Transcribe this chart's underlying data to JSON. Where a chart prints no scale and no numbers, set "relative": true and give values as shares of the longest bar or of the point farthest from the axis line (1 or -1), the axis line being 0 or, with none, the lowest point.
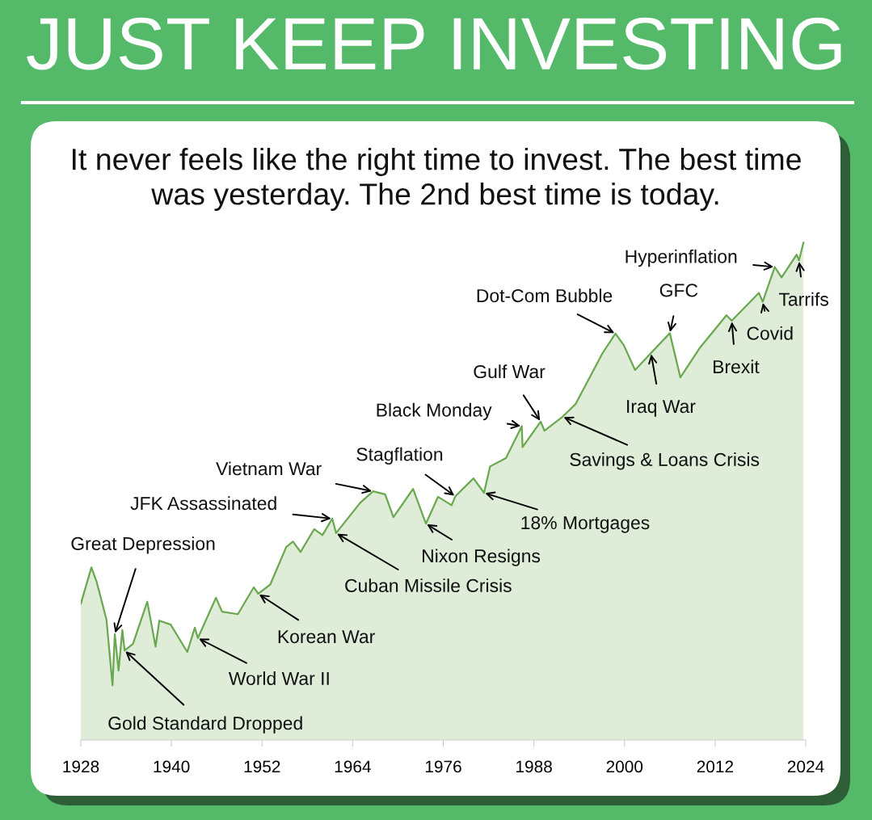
{
  "chart_data": {
    "type": "area",
    "relative": true,
    "title": "JUST KEEP INVESTING",
    "subtitle": "It never feels like the right time to invest. The best time was yesterday. The 2nd best time is today.",
    "xlim": [
      1928,
      2024
    ],
    "xticks": [
      1928,
      1940,
      1952,
      1964,
      1976,
      1988,
      2000,
      2012,
      2024
    ],
    "series": [
      {
        "color": "#6aa84f",
        "x": [
          1928.0,
          1929.4,
          1930.1,
          1931.4,
          1932.2,
          1932.5,
          1933.0,
          1933.5,
          1933.8,
          1934.9,
          1936.8,
          1937.9,
          1938.4,
          1939.9,
          1942.1,
          1943.1,
          1943.5,
          1945.9,
          1946.7,
          1948.8,
          1950.9,
          1951.5,
          1953.1,
          1955.2,
          1956.1,
          1957.1,
          1958.9,
          1960.0,
          1961.3,
          1961.8,
          1965.0,
          1966.7,
          1968.3,
          1969.4,
          1972.0,
          1973.7,
          1975.3,
          1977.1,
          1977.6,
          1980.0,
          1981.4,
          1982.2,
          1984.3,
          1986.4,
          1986.5,
          1988.9,
          1989.4,
          1991.8,
          1993.5,
          1997.1,
          1998.8,
          1999.9,
          2001.4,
          2003.5,
          2006.0,
          2007.4,
          2010.0,
          2013.5,
          2014.2,
          2017.8,
          2018.3,
          2019.9,
          2020.8,
          2022.8,
          2023.1,
          2023.7
        ],
        "values": [
          0.274,
          0.347,
          0.318,
          0.242,
          0.11,
          0.213,
          0.14,
          0.221,
          0.18,
          0.193,
          0.278,
          0.188,
          0.24,
          0.232,
          0.177,
          0.226,
          0.205,
          0.286,
          0.258,
          0.253,
          0.307,
          0.294,
          0.313,
          0.388,
          0.399,
          0.378,
          0.424,
          0.412,
          0.445,
          0.416,
          0.477,
          0.5,
          0.494,
          0.448,
          0.505,
          0.435,
          0.489,
          0.472,
          0.49,
          0.526,
          0.497,
          0.55,
          0.567,
          0.631,
          0.589,
          0.64,
          0.622,
          0.65,
          0.675,
          0.778,
          0.817,
          0.794,
          0.744,
          0.778,
          0.818,
          0.729,
          0.789,
          0.854,
          0.843,
          0.899,
          0.881,
          0.951,
          0.93,
          0.976,
          0.964,
          1.0
        ]
      }
    ],
    "annotations": [
      {
        "text": "Great Depression",
        "x": 1932.5,
        "y": 0.213
      },
      {
        "text": "Gold Standard Dropped",
        "x": 1933.8,
        "y": 0.18
      },
      {
        "text": "World War II",
        "x": 1943.5,
        "y": 0.205
      },
      {
        "text": "Korean War",
        "x": 1951.5,
        "y": 0.294
      },
      {
        "text": "Cuban Missile Crisis",
        "x": 1961.8,
        "y": 0.416
      },
      {
        "text": "JFK Assassinated",
        "x": 1961.3,
        "y": 0.445
      },
      {
        "text": "Vietnam War",
        "x": 1966.7,
        "y": 0.5
      },
      {
        "text": "Stagflation",
        "x": 1977.6,
        "y": 0.49
      },
      {
        "text": "Nixon Resigns",
        "x": 1973.7,
        "y": 0.435
      },
      {
        "text": "18% Mortgages",
        "x": 1981.4,
        "y": 0.497
      },
      {
        "text": "Black Monday",
        "x": 1986.4,
        "y": 0.631
      },
      {
        "text": "Gulf War",
        "x": 1988.9,
        "y": 0.64
      },
      {
        "text": "Savings & Loans Crisis",
        "x": 1991.8,
        "y": 0.65
      },
      {
        "text": "Dot-Com Bubble",
        "x": 1998.8,
        "y": 0.817
      },
      {
        "text": "Iraq War",
        "x": 2003.5,
        "y": 0.778
      },
      {
        "text": "GFC",
        "x": 2006.0,
        "y": 0.818
      },
      {
        "text": "Brexit",
        "x": 2014.2,
        "y": 0.843
      },
      {
        "text": "Covid",
        "x": 2018.3,
        "y": 0.881
      },
      {
        "text": "Hyperinflation",
        "x": 2019.9,
        "y": 0.951
      },
      {
        "text": "Tarrifs",
        "x": 2023.1,
        "y": 0.964
      }
    ]
  }
}
